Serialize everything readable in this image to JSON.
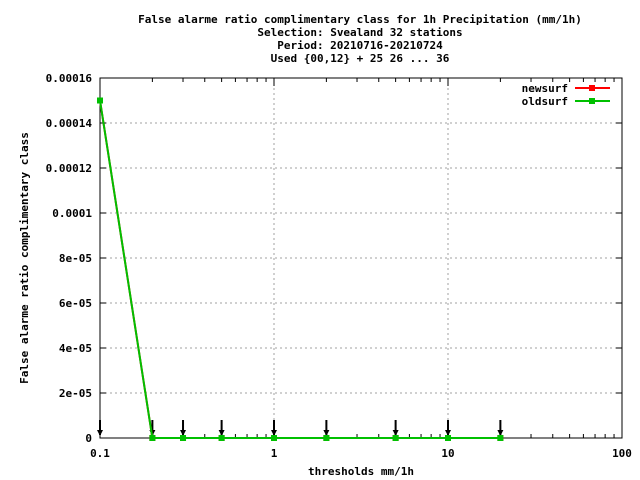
{
  "chart_data": {
    "type": "line",
    "title_lines": [
      "False alarme ratio complimentary class  for 1h Precipitation (mm/1h)",
      "Selection: Svealand     32 stations",
      "Period: 20210716-20210724",
      "Used {00,12} + 25 26 ... 36"
    ],
    "xlabel": "thresholds mm/1h",
    "ylabel": "False alarme ratio complimentary class",
    "x_scale": "log",
    "xlim": [
      0.1,
      100
    ],
    "ylim": [
      0,
      0.00016
    ],
    "x_ticks": [
      {
        "value": 0.1,
        "label": "0.1"
      },
      {
        "value": 1,
        "label": "1"
      },
      {
        "value": 10,
        "label": "10"
      },
      {
        "value": 100,
        "label": "100"
      }
    ],
    "y_ticks": [
      {
        "value": 0,
        "label": "0"
      },
      {
        "value": 2e-05,
        "label": "2e-05"
      },
      {
        "value": 4e-05,
        "label": "4e-05"
      },
      {
        "value": 6e-05,
        "label": "6e-05"
      },
      {
        "value": 8e-05,
        "label": "8e-05"
      },
      {
        "value": 0.0001,
        "label": "0.0001"
      },
      {
        "value": 0.00012,
        "label": "0.00012"
      },
      {
        "value": 0.00014,
        "label": "0.00014"
      },
      {
        "value": 0.00016,
        "label": "0.00016"
      }
    ],
    "grid": true,
    "legend_position": "top-right",
    "x": [
      0.1,
      0.2,
      0.3,
      0.5,
      1,
      2,
      5,
      10,
      20
    ],
    "series": [
      {
        "name": "newsurf",
        "color": "#ff0000",
        "values": [
          0.00015,
          0,
          0,
          0,
          0,
          0,
          0,
          0,
          0
        ]
      },
      {
        "name": "oldsurf",
        "color": "#00c000",
        "values": [
          0.00015,
          0,
          0,
          0,
          0,
          0,
          0,
          0,
          0
        ]
      }
    ],
    "arrow_markers_x": [
      0.1,
      0.2,
      0.3,
      0.5,
      1,
      2,
      5,
      10,
      20
    ]
  }
}
